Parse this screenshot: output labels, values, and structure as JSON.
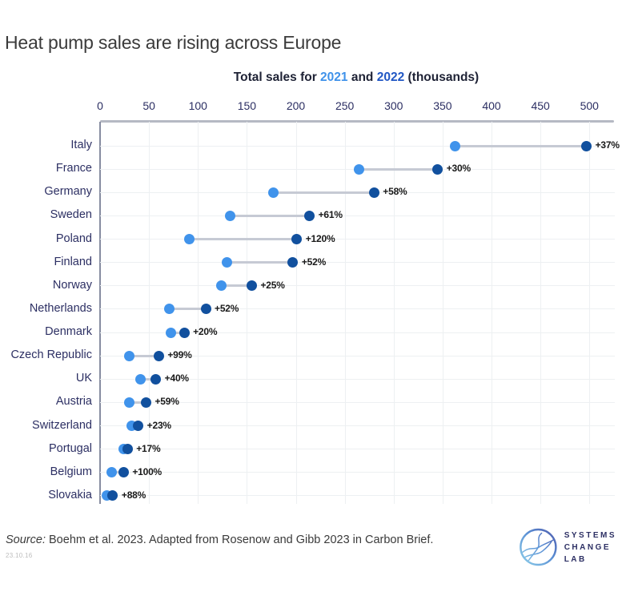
{
  "title": "Heat pump sales are rising across Europe",
  "subtitle": {
    "part1": "Total sales for ",
    "year1": "2021",
    "part2": " and ",
    "year2": "2022",
    "part3": " (thousands)"
  },
  "chart_data": {
    "type": "scatter",
    "variant": "dumbbell-dot-plot",
    "title": "Total sales for 2021 and 2022 (thousands)",
    "orientation": "horizontal",
    "categories": [
      "Italy",
      "France",
      "Germany",
      "Sweden",
      "Poland",
      "Finland",
      "Norway",
      "Netherlands",
      "Denmark",
      "Czech Republic",
      "UK",
      "Austria",
      "Switzerland",
      "Portugal",
      "Belgium",
      "Slovakia"
    ],
    "series": [
      {
        "name": "2021",
        "color": "#4093eb",
        "values": [
          363,
          265,
          177,
          133,
          91,
          130,
          124,
          71,
          72,
          30,
          41,
          30,
          32,
          24,
          12,
          7
        ]
      },
      {
        "name": "2022",
        "color": "#11509e",
        "values": [
          497,
          345,
          280,
          214,
          201,
          197,
          155,
          108,
          86,
          60,
          57,
          47,
          39,
          28,
          24,
          13
        ]
      }
    ],
    "change_labels": [
      "+37%",
      "+30%",
      "+58%",
      "+61%",
      "+120%",
      "+52%",
      "+25%",
      "+52%",
      "+20%",
      "+99%",
      "+40%",
      "+59%",
      "+23%",
      "+17%",
      "+100%",
      "+88%"
    ],
    "x_axis": {
      "min": 0,
      "max": 500,
      "tick_step": 50,
      "ticks": [
        0,
        50,
        100,
        150,
        200,
        250,
        300,
        350,
        400,
        450,
        500
      ],
      "position": "top"
    },
    "grid": true,
    "legend": "inline-in-subtitle",
    "connector_color": "#c6cad4"
  },
  "footer": {
    "source_label": "Source:",
    "source_text": " Boehm et al. 2023. Adapted from Rosenow and Gibb 2023 in Carbon Brief.",
    "figure_id": "23.10.16"
  },
  "logo": {
    "line1": "SYSTEMS",
    "line2": "CHANGE",
    "line3": "LAB"
  },
  "colors": {
    "year2021_dot": "#4093eb",
    "year2022_dot": "#11509e",
    "subtitle_2021": "#3f92ea",
    "subtitle_2022": "#2157c4",
    "axis_text": "#2c2f63",
    "gridline": "#edf0f2",
    "connector": "#c6cad4",
    "logo_navy": "#2d3064"
  }
}
